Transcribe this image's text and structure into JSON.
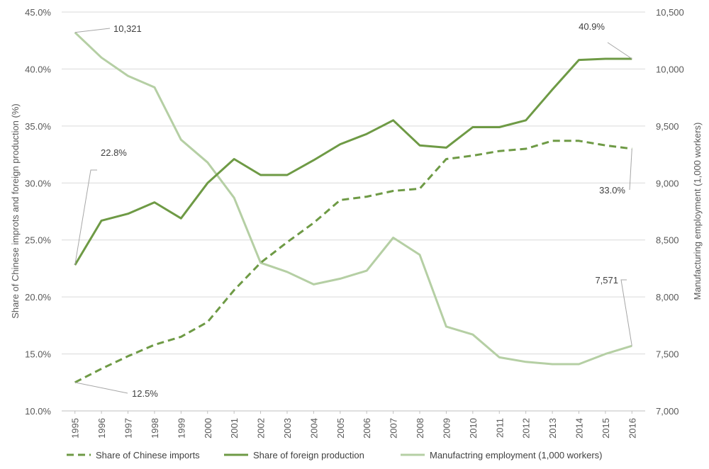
{
  "chart_data": {
    "type": "line",
    "title": "",
    "x": [
      "1995",
      "1996",
      "1997",
      "1998",
      "1999",
      "2000",
      "2001",
      "2002",
      "2003",
      "2004",
      "2005",
      "2006",
      "2007",
      "2008",
      "2009",
      "2010",
      "2011",
      "2012",
      "2013",
      "2014",
      "2015",
      "2016"
    ],
    "left_axis": {
      "label": "Share of Chinese improts and foreign production (%)",
      "ylim": [
        10,
        45
      ],
      "ticks": [
        "10.0%",
        "15.0%",
        "20.0%",
        "25.0%",
        "30.0%",
        "35.0%",
        "40.0%",
        "45.0%"
      ]
    },
    "right_axis": {
      "label": "Manufacturing employment (1,000 workers)",
      "ylim": [
        7000,
        10500
      ],
      "ticks": [
        "7,000",
        "7,500",
        "8,000",
        "8,500",
        "9,000",
        "9,500",
        "10,000",
        "10,500"
      ]
    },
    "series": [
      {
        "name": "Share of Chinese imports",
        "axis": "left",
        "color": "#6e9a45",
        "style": "dashed",
        "values": [
          12.5,
          13.7,
          14.8,
          15.8,
          16.5,
          17.8,
          20.6,
          23.0,
          24.8,
          26.5,
          28.5,
          28.8,
          29.3,
          29.5,
          32.1,
          32.4,
          32.8,
          33.0,
          33.7,
          33.7,
          33.3,
          33.0
        ]
      },
      {
        "name": "Share of foreign production",
        "axis": "left",
        "color": "#6e9a45",
        "style": "solid",
        "values": [
          22.8,
          26.7,
          27.3,
          28.3,
          26.9,
          30.0,
          32.1,
          30.7,
          30.7,
          32.0,
          33.4,
          34.3,
          35.5,
          33.3,
          33.1,
          34.9,
          34.9,
          35.5,
          38.2,
          40.8,
          40.9,
          40.9
        ]
      },
      {
        "name": "Manufactring employment (1,000 workers)",
        "axis": "right",
        "color": "#b5cfa4",
        "style": "solid",
        "values": [
          10321,
          10100,
          9940,
          9840,
          9380,
          9180,
          8870,
          8300,
          8220,
          8110,
          8160,
          8230,
          8520,
          8370,
          7740,
          7670,
          7470,
          7430,
          7410,
          7410,
          7500,
          7571
        ]
      }
    ],
    "annotations": [
      {
        "text": "10,321",
        "series": 2,
        "index": 0
      },
      {
        "text": "22.8%",
        "series": 1,
        "index": 0
      },
      {
        "text": "12.5%",
        "series": 0,
        "index": 0
      },
      {
        "text": "40.9%",
        "series": 1,
        "index": 21
      },
      {
        "text": "33.0%",
        "series": 0,
        "index": 21
      },
      {
        "text": "7,571",
        "series": 2,
        "index": 21
      }
    ],
    "grid": true,
    "legend_position": "bottom"
  }
}
